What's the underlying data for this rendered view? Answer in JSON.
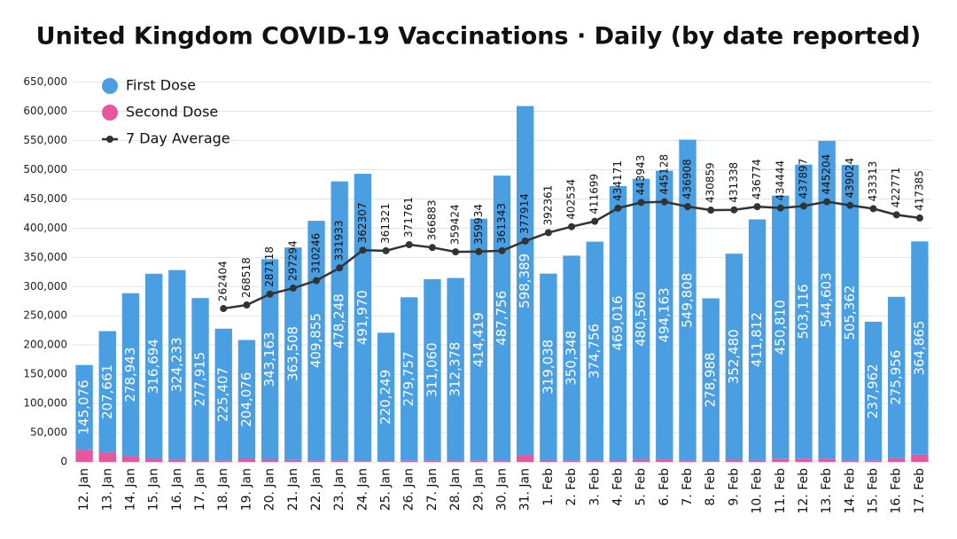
{
  "chart_data": {
    "type": "bar",
    "stacked": true,
    "title": "United Kingdom COVID-19 Vaccinations · Daily (by date reported)",
    "categories": [
      "12. Jan",
      "13. Jan",
      "14. Jan",
      "15. Jan",
      "16. Jan",
      "17. Jan",
      "18. Jan",
      "19. Jan",
      "20. Jan",
      "21. Jan",
      "22. Jan",
      "23. Jan",
      "24. Jan",
      "25. Jan",
      "26. Jan",
      "27. Jan",
      "28. Jan",
      "29. Jan",
      "30. Jan",
      "31. Jan",
      "1. Feb",
      "2. Feb",
      "3. Feb",
      "4. Feb",
      "5. Feb",
      "6. Feb",
      "7. Feb",
      "8. Feb",
      "9. Feb",
      "10. Feb",
      "11. Feb",
      "12. Feb",
      "13. Feb",
      "14. Feb",
      "15. Feb",
      "16. Feb",
      "17. Feb"
    ],
    "series": [
      {
        "name": "First Dose",
        "type": "bar",
        "color": "#4a9fe3",
        "values": [
          145076,
          207661,
          278943,
          316694,
          324233,
          277915,
          225407,
          204076,
          343163,
          363508,
          409855,
          478248,
          491970,
          220249,
          279757,
          311060,
          312378,
          414419,
          487756,
          598389,
          319038,
          350348,
          374756,
          469016,
          480560,
          494163,
          549808,
          278988,
          352480,
          411812,
          450810,
          503116,
          544603,
          505362,
          237962,
          275956,
          364865
        ],
        "value_labels": [
          "145,076",
          "207,661",
          "278,943",
          "316,694",
          "324,233",
          "277,915",
          "225,407",
          "204,076",
          "343,163",
          "363,508",
          "409,855",
          "478,248",
          "491,970",
          "220,249",
          "279,757",
          "311,060",
          "312,378",
          "414,419",
          "487,756",
          "598,389",
          "319,038",
          "350,348",
          "374,756",
          "469,016",
          "480,560",
          "494,163",
          "549,808",
          "278,988",
          "352,480",
          "411,812",
          "450,810",
          "503,116",
          "544,603",
          "505,362",
          "237,962",
          "275,956",
          "364,865"
        ]
      },
      {
        "name": "Second Dose",
        "type": "bar",
        "color": "#e8579e",
        "values": [
          20761,
          16065,
          9745,
          5257,
          4027,
          2475,
          2565,
          4565,
          3759,
          3411,
          2760,
          1821,
          1043,
          818,
          1968,
          1710,
          2329,
          1769,
          2178,
          10621,
          3156,
          2587,
          2166,
          2995,
          4036,
          4064,
          1662,
          862,
          3811,
          3161,
          4894,
          5647,
          4775,
          2846,
          1915,
          6535,
          12412
        ],
        "value_labels": [
          "20,761",
          "16,065",
          "9,745",
          "5,257",
          "4,027",
          "2,475",
          "2,565",
          "4,565",
          "3,759",
          "3,411",
          "2,760",
          "1,821",
          "1,043",
          "818",
          "1,968",
          "1,710",
          "2,329",
          "1,769",
          "2,178",
          "10,621",
          "3,156",
          "2,587",
          "2,166",
          "2,995",
          "4,036",
          "4,064",
          "1,662",
          "862",
          "3,811",
          "3,161",
          "4,894",
          "5,647",
          "4,775",
          "2,846",
          "1,915",
          "6,535",
          "12,412"
        ]
      },
      {
        "name": "7 Day Average",
        "type": "line",
        "color": "#333333",
        "values": [
          null,
          null,
          null,
          null,
          null,
          null,
          262404,
          268518,
          287118,
          297294,
          310246,
          331933,
          362307,
          361321,
          371761,
          366883,
          359424,
          359934,
          361343,
          377914,
          392361,
          402534,
          411699,
          434171,
          443943,
          445128,
          436908,
          430859,
          431338,
          436774,
          434444,
          437897,
          445204,
          439024,
          433313,
          422771,
          417385
        ]
      }
    ],
    "ylim": [
      0,
      660000
    ],
    "yticks": [
      0,
      {
        "value": 50000,
        "label": "50,000"
      },
      {
        "value": 100000,
        "label": "100,000"
      },
      {
        "value": 150000,
        "label": "150,000"
      },
      {
        "value": 200000,
        "label": "200,000"
      },
      {
        "value": 250000,
        "label": "250,000"
      },
      {
        "value": 300000,
        "label": "300,000"
      },
      {
        "value": 350000,
        "label": "350,000"
      },
      {
        "value": 400000,
        "label": "400,000"
      },
      {
        "value": 450000,
        "label": "450,000"
      },
      {
        "value": 500000,
        "label": "500,000"
      },
      {
        "value": 550000,
        "label": "550,000"
      },
      {
        "value": 600000,
        "label": "600,000"
      },
      {
        "value": 650000,
        "label": "650,000"
      }
    ],
    "grid": true,
    "legend": "upper left"
  }
}
